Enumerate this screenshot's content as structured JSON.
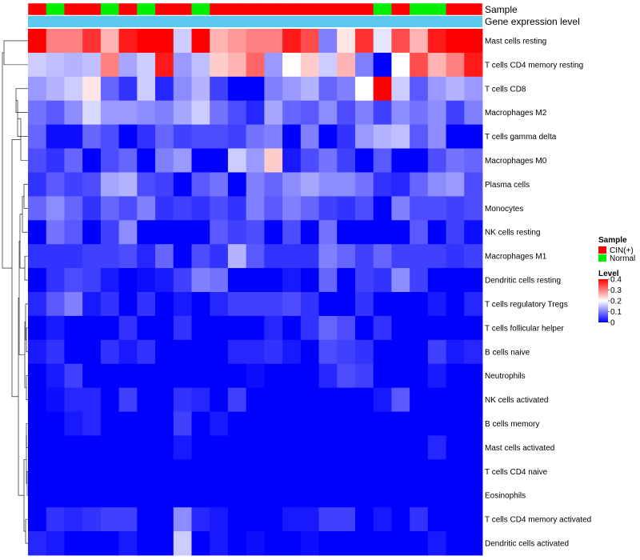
{
  "chart_data": {
    "type": "heatmap",
    "annotation_tracks": [
      {
        "name": "Sample",
        "label": "Sample"
      },
      {
        "name": "Gene expression level",
        "label": "Gene expression level"
      }
    ],
    "sample_groups": [
      "CIN",
      "Normal",
      "CIN",
      "CIN",
      "Normal",
      "CIN",
      "Normal",
      "CIN",
      "CIN",
      "Normal",
      "CIN",
      "CIN",
      "CIN",
      "CIN",
      "CIN",
      "CIN",
      "CIN",
      "CIN",
      "CIN",
      "Normal",
      "CIN",
      "Normal",
      "Normal",
      "CIN",
      "CIN"
    ],
    "rows": [
      "Mast cells resting",
      "T cells CD4 memory resting",
      "T cells CD8",
      "Macrophages M2",
      "T cells gamma delta",
      "Macrophages M0",
      "Plasma cells",
      "Monocytes",
      "NK cells resting",
      "Macrophages M1",
      "Dendritic cells resting",
      "T cells regulatory  Tregs",
      "T cells follicular helper",
      "B cells naive",
      "Neutrophils",
      "NK cells activated",
      "B cells memory",
      "Mast cells activated",
      "T cells CD4 naive",
      "Eosinophils",
      "T cells CD4 memory activated",
      "Dendritic cells activated"
    ],
    "values": [
      [
        0.4,
        0.3,
        0.3,
        0.36,
        0.26,
        0.38,
        0.4,
        0.4,
        0.16,
        0.4,
        0.26,
        0.28,
        0.3,
        0.3,
        0.38,
        0.34,
        0.1,
        0.22,
        0.36,
        0.18,
        0.34,
        0.26,
        0.38,
        0.4,
        0.4
      ],
      [
        0.16,
        0.15,
        0.14,
        0.15,
        0.3,
        0.13,
        0.16,
        0.38,
        0.12,
        0.15,
        0.24,
        0.26,
        0.32,
        0.12,
        0.2,
        0.24,
        0.16,
        0.26,
        0.1,
        0.0,
        0.2,
        0.34,
        0.26,
        0.3,
        0.38
      ],
      [
        0.12,
        0.14,
        0.16,
        0.22,
        0.08,
        0.04,
        0.16,
        0.03,
        0.11,
        0.14,
        0.05,
        0.0,
        0.0,
        0.1,
        0.12,
        0.14,
        0.08,
        0.1,
        0.2,
        0.4,
        0.16,
        0.07,
        0.12,
        0.14,
        0.12
      ],
      [
        0.09,
        0.07,
        0.11,
        0.17,
        0.12,
        0.12,
        0.11,
        0.1,
        0.13,
        0.16,
        0.09,
        0.06,
        0.03,
        0.13,
        0.08,
        0.07,
        0.11,
        0.06,
        0.1,
        0.05,
        0.11,
        0.09,
        0.11,
        0.05,
        0.1
      ],
      [
        0.08,
        0.01,
        0.01,
        0.08,
        0.06,
        0.0,
        0.04,
        0.08,
        0.05,
        0.06,
        0.06,
        0.05,
        0.09,
        0.1,
        0.0,
        0.1,
        0.0,
        0.04,
        0.12,
        0.14,
        0.15,
        0.07,
        0.11,
        0.0,
        0.0
      ],
      [
        0.06,
        0.04,
        0.08,
        0.0,
        0.06,
        0.08,
        0.0,
        0.1,
        0.12,
        0.0,
        0.0,
        0.16,
        0.12,
        0.24,
        0.02,
        0.06,
        0.09,
        0.05,
        0.0,
        0.07,
        0.0,
        0.0,
        0.06,
        0.09,
        0.08
      ],
      [
        0.04,
        0.07,
        0.05,
        0.06,
        0.13,
        0.14,
        0.06,
        0.05,
        0.0,
        0.07,
        0.09,
        0.0,
        0.1,
        0.08,
        0.11,
        0.13,
        0.11,
        0.11,
        0.09,
        0.04,
        0.03,
        0.08,
        0.11,
        0.12,
        0.06
      ],
      [
        0.08,
        0.11,
        0.08,
        0.04,
        0.08,
        0.06,
        0.1,
        0.04,
        0.05,
        0.04,
        0.06,
        0.04,
        0.1,
        0.07,
        0.1,
        0.08,
        0.05,
        0.04,
        0.06,
        0.0,
        0.1,
        0.06,
        0.06,
        0.05,
        0.06
      ],
      [
        0.0,
        0.09,
        0.07,
        0.0,
        0.05,
        0.11,
        0.0,
        0.0,
        0.0,
        0.0,
        0.07,
        0.05,
        0.06,
        0.0,
        0.06,
        0.0,
        0.09,
        0.0,
        0.0,
        0.0,
        0.0,
        0.07,
        0.0,
        0.05,
        0.01
      ],
      [
        0.04,
        0.04,
        0.04,
        0.05,
        0.05,
        0.06,
        0.03,
        0.08,
        0.0,
        0.06,
        0.04,
        0.14,
        0.07,
        0.04,
        0.04,
        0.04,
        0.1,
        0.08,
        0.05,
        0.08,
        0.05,
        0.05,
        0.05,
        0.04,
        0.05
      ],
      [
        0.0,
        0.04,
        0.06,
        0.05,
        0.02,
        0.0,
        0.01,
        0.02,
        0.05,
        0.1,
        0.09,
        0.0,
        0.0,
        0.0,
        0.02,
        0.0,
        0.08,
        0.0,
        0.05,
        0.04,
        0.11,
        0.05,
        0.0,
        0.0,
        0.0
      ],
      [
        0.03,
        0.07,
        0.1,
        0.02,
        0.04,
        0.0,
        0.04,
        0.0,
        0.02,
        0.0,
        0.03,
        0.05,
        0.05,
        0.05,
        0.06,
        0.04,
        0.0,
        0.0,
        0.04,
        0.0,
        0.0,
        0.0,
        0.02,
        0.0,
        0.03
      ],
      [
        0.0,
        0.02,
        0.0,
        0.0,
        0.0,
        0.04,
        0.0,
        0.0,
        0.04,
        0.0,
        0.0,
        0.0,
        0.0,
        0.03,
        0.0,
        0.04,
        0.08,
        0.06,
        0.0,
        0.04,
        0.0,
        0.0,
        0.0,
        0.0,
        0.0
      ],
      [
        0.02,
        0.04,
        0.0,
        0.0,
        0.04,
        0.02,
        0.04,
        0.0,
        0.0,
        0.0,
        0.0,
        0.03,
        0.03,
        0.04,
        0.02,
        0.0,
        0.06,
        0.05,
        0.04,
        0.0,
        0.0,
        0.0,
        0.05,
        0.02,
        0.03
      ],
      [
        0.0,
        0.02,
        0.05,
        0.0,
        0.0,
        0.0,
        0.0,
        0.0,
        0.0,
        0.0,
        0.0,
        0.0,
        0.01,
        0.0,
        0.0,
        0.0,
        0.03,
        0.06,
        0.05,
        0.0,
        0.0,
        0.0,
        0.02,
        0.0,
        0.0
      ],
      [
        0.0,
        0.01,
        0.03,
        0.03,
        0.0,
        0.05,
        0.0,
        0.0,
        0.04,
        0.03,
        0.0,
        0.05,
        0.0,
        0.0,
        0.0,
        0.0,
        0.0,
        0.0,
        0.0,
        0.02,
        0.07,
        0.0,
        0.0,
        0.0,
        0.0
      ],
      [
        0.0,
        0.0,
        0.02,
        0.03,
        0.0,
        0.0,
        0.0,
        0.0,
        0.05,
        0.0,
        0.02,
        0.0,
        0.0,
        0.0,
        0.0,
        0.0,
        0.0,
        0.0,
        0.0,
        0.0,
        0.0,
        0.0,
        0.0,
        0.0,
        0.0
      ],
      [
        0.0,
        0.0,
        0.0,
        0.0,
        0.0,
        0.0,
        0.0,
        0.0,
        0.02,
        0.0,
        0.0,
        0.0,
        0.0,
        0.0,
        0.0,
        0.0,
        0.0,
        0.0,
        0.0,
        0.0,
        0.0,
        0.0,
        0.03,
        0.0,
        0.0
      ],
      [
        0.0,
        0.0,
        0.0,
        0.0,
        0.0,
        0.0,
        0.0,
        0.0,
        0.0,
        0.0,
        0.0,
        0.0,
        0.0,
        0.0,
        0.0,
        0.0,
        0.0,
        0.0,
        0.0,
        0.0,
        0.0,
        0.0,
        0.0,
        0.0,
        0.0
      ],
      [
        0.0,
        0.0,
        0.0,
        0.0,
        0.0,
        0.0,
        0.0,
        0.0,
        0.0,
        0.0,
        0.0,
        0.0,
        0.0,
        0.0,
        0.0,
        0.0,
        0.0,
        0.0,
        0.0,
        0.0,
        0.0,
        0.0,
        0.0,
        0.0,
        0.0
      ],
      [
        0.0,
        0.04,
        0.03,
        0.04,
        0.05,
        0.05,
        0.0,
        0.0,
        0.11,
        0.03,
        0.02,
        0.0,
        0.0,
        0.0,
        0.02,
        0.02,
        0.05,
        0.05,
        0.0,
        0.02,
        0.0,
        0.04,
        0.0,
        0.0,
        0.0
      ],
      [
        0.03,
        0.02,
        0.0,
        0.0,
        0.0,
        0.02,
        0.0,
        0.0,
        0.16,
        0.0,
        0.02,
        0.0,
        0.01,
        0.0,
        0.0,
        0.01,
        0.0,
        0.0,
        0.0,
        0.0,
        0.0,
        0.0,
        0.02,
        0.0,
        0.0
      ]
    ],
    "legend": {
      "sample_title": "Sample",
      "sample_items": [
        {
          "label": "CIN(+)",
          "color": "#ff0000"
        },
        {
          "label": "Normal",
          "color": "#00ee00"
        }
      ],
      "level_title": "Level",
      "level_ticks": [
        "0.4",
        "0.3",
        "0.2",
        "0.1",
        "0"
      ],
      "level_values": [
        0.4,
        0.3,
        0.2,
        0.1,
        0
      ]
    },
    "color_scale": {
      "low": "#0000ff",
      "mid": "#ffffff",
      "high": "#ff0000",
      "min": 0,
      "max": 0.4,
      "mid_value": 0.2
    },
    "track_colors": {
      "CIN": "#ff0000",
      "Normal": "#00ee00",
      "expression": "#5bc8f0"
    }
  }
}
